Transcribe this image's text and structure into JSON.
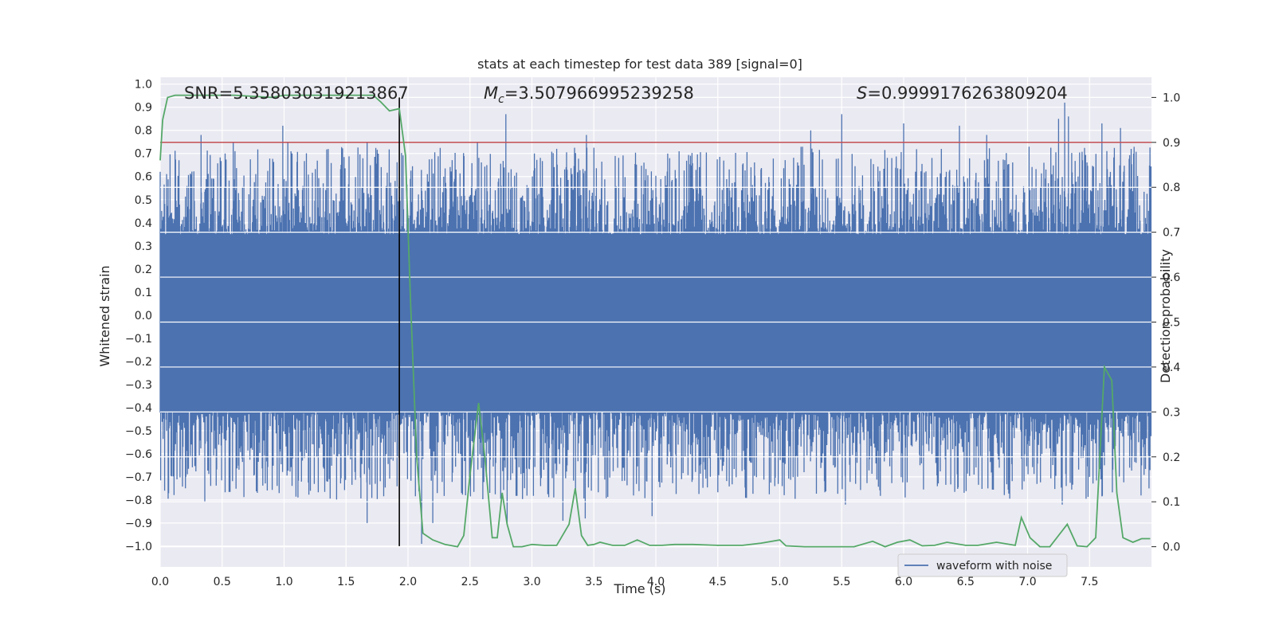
{
  "chart_data": {
    "type": "line",
    "title": "stats at each timestep for test data 389 [signal=0]",
    "xlabel": "Time (s)",
    "ylabel": "Whitened strain",
    "y2label": "Detection probability",
    "xlim": [
      0.0,
      8.0
    ],
    "ylim": [
      -1.09,
      1.03
    ],
    "y2lim": [
      -0.045,
      1.045
    ],
    "xticks": [
      "0.0",
      "0.5",
      "1.0",
      "1.5",
      "2.0",
      "2.5",
      "3.0",
      "3.5",
      "4.0",
      "4.5",
      "5.0",
      "5.5",
      "6.0",
      "6.5",
      "7.0",
      "7.5"
    ],
    "yticks": [
      "1.0",
      "0.9",
      "0.8",
      "0.7",
      "0.6",
      "0.5",
      "0.4",
      "0.3",
      "0.2",
      "0.1",
      "0.0",
      "-0.1",
      "-0.2",
      "-0.3",
      "-0.4",
      "-0.5",
      "-0.6",
      "-0.7",
      "-0.8",
      "-0.9",
      "-1.0"
    ],
    "y2ticks": [
      "1.0",
      "0.9",
      "0.8",
      "0.7",
      "0.6",
      "0.5",
      "0.4",
      "0.3",
      "0.2",
      "0.1",
      "0.0"
    ],
    "grid": true,
    "legend": {
      "placement": "lower-right",
      "entries": [
        "waveform with noise"
      ]
    },
    "annotations": {
      "snr": "SNR=5.358030319213867",
      "mc_symbol": "M",
      "mc_sub": "c",
      "mc_value": "=3.507966995239258",
      "s_symbol": "S",
      "s_value": "=0.9999176263809204"
    },
    "threshold": {
      "axis": "y2",
      "value": 0.9,
      "color": "#c44e52"
    },
    "marker_time": 1.93,
    "series": [
      {
        "name": "waveform with noise",
        "axis": "y",
        "kind": "dense-noise",
        "color": "#4c72b0",
        "x_range": [
          0.0,
          8.0
        ],
        "core_amplitude": [
          -0.42,
          0.35
        ],
        "spikes": [
          [
            0.33,
            0.78
          ],
          [
            0.36,
            -0.81
          ],
          [
            0.59,
            0.75
          ],
          [
            0.99,
            0.82
          ],
          [
            1.03,
            0.75
          ],
          [
            1.67,
            0.75
          ],
          [
            1.67,
            -0.9
          ],
          [
            2.56,
            0.75
          ],
          [
            2.79,
            0.87
          ],
          [
            2.8,
            -0.9
          ],
          [
            3.2,
            0.72
          ],
          [
            3.25,
            -0.89
          ],
          [
            3.44,
            0.78
          ],
          [
            3.43,
            -0.88
          ],
          [
            3.97,
            -0.87
          ],
          [
            5.25,
            0.8
          ],
          [
            5.5,
            0.87
          ],
          [
            5.53,
            -0.82
          ],
          [
            6.0,
            0.83
          ],
          [
            6.45,
            0.82
          ],
          [
            6.67,
            0.78
          ],
          [
            7.25,
            0.85
          ],
          [
            7.3,
            0.92
          ],
          [
            7.28,
            -0.82
          ],
          [
            7.33,
            0.86
          ],
          [
            7.6,
            0.83
          ],
          [
            7.75,
            0.81
          ],
          [
            1.07,
            -0.62
          ],
          [
            2.2,
            -0.9
          ],
          [
            2.11,
            -0.99
          ],
          [
            3.07,
            -0.74
          ],
          [
            4.96,
            -0.74
          ],
          [
            6.68,
            -0.75
          ],
          [
            7.98,
            -0.75
          ]
        ]
      },
      {
        "name": "",
        "axis": "y2",
        "kind": "line",
        "color": "#55a868",
        "x": [
          0.0,
          0.02,
          0.06,
          0.12,
          0.3,
          0.6,
          0.9,
          1.0,
          1.2,
          1.4,
          1.6,
          1.72,
          1.78,
          1.85,
          1.93,
          1.98,
          2.02,
          2.07,
          2.12,
          2.2,
          2.3,
          2.4,
          2.45,
          2.5,
          2.57,
          2.62,
          2.68,
          2.72,
          2.76,
          2.8,
          2.85,
          2.92,
          3.0,
          3.1,
          3.2,
          3.3,
          3.35,
          3.4,
          3.45,
          3.5,
          3.55,
          3.65,
          3.75,
          3.85,
          3.95,
          4.05,
          4.15,
          4.3,
          4.5,
          4.7,
          4.85,
          5.0,
          5.05,
          5.2,
          5.4,
          5.6,
          5.75,
          5.85,
          5.95,
          6.05,
          6.15,
          6.25,
          6.35,
          6.5,
          6.6,
          6.75,
          6.9,
          6.95,
          7.02,
          7.1,
          7.18,
          7.25,
          7.32,
          7.4,
          7.48,
          7.55,
          7.62,
          7.68,
          7.72,
          7.77,
          7.85,
          7.92,
          7.99
        ],
        "values": [
          0.86,
          0.95,
          1.0,
          1.005,
          1.005,
          1.005,
          1.0,
          1.005,
          1.005,
          1.005,
          1.005,
          1.005,
          0.99,
          0.97,
          0.975,
          0.87,
          0.55,
          0.2,
          0.03,
          0.015,
          0.005,
          0.0,
          0.025,
          0.16,
          0.32,
          0.2,
          0.02,
          0.02,
          0.12,
          0.05,
          0.0,
          0.0,
          0.005,
          0.003,
          0.003,
          0.05,
          0.13,
          0.025,
          0.003,
          0.005,
          0.01,
          0.003,
          0.003,
          0.015,
          0.003,
          0.003,
          0.005,
          0.005,
          0.003,
          0.003,
          0.008,
          0.015,
          0.002,
          0.0,
          0.0,
          0.0,
          0.012,
          0.0,
          0.01,
          0.015,
          0.002,
          0.003,
          0.01,
          0.003,
          0.003,
          0.01,
          0.003,
          0.065,
          0.02,
          0.0,
          0.0,
          0.025,
          0.05,
          0.002,
          0.0,
          0.02,
          0.4,
          0.37,
          0.12,
          0.02,
          0.01,
          0.018,
          0.018
        ]
      }
    ]
  }
}
